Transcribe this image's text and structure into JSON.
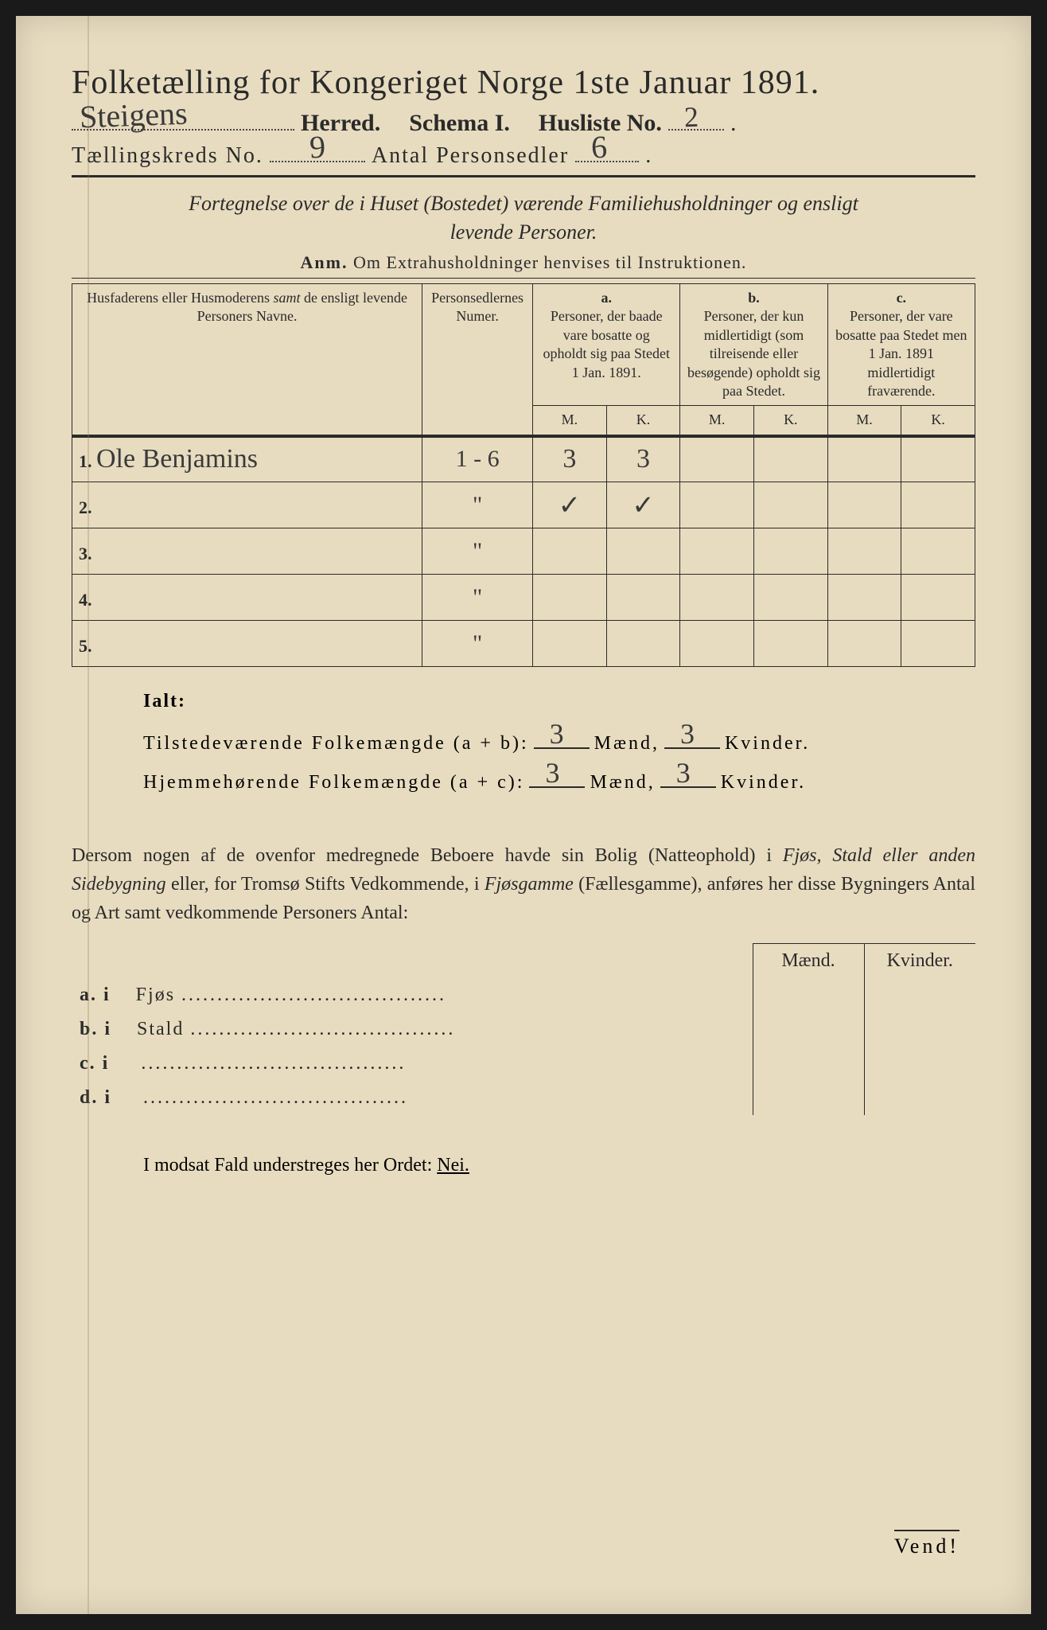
{
  "colors": {
    "paper": "#e8dcc0",
    "ink": "#2a2a2a",
    "outer": "#1a1a1a",
    "handwriting": "#3a3a3a"
  },
  "typography": {
    "title_fontsize": 42,
    "body_fontsize": 24,
    "table_header_fontsize": 18,
    "handwriting_fontsize": 40
  },
  "header": {
    "title": "Folketælling for Kongeriget Norge 1ste Januar 1891.",
    "herred_handwritten": "Steigens",
    "herred_label": "Herred.",
    "schema_label": "Schema I.",
    "husliste_label": "Husliste No.",
    "husliste_value": "2",
    "kreds_label": "Tællingskreds No.",
    "kreds_value": "9",
    "antal_label": "Antal Personsedler",
    "antal_value": "6"
  },
  "subtitle": {
    "line1": "Fortegnelse over de i Huset (Bostedet) værende Familiehusholdninger og ensligt",
    "line2": "levende Personer.",
    "anm": "Anm.  Om Extrahusholdninger henvises til Instruktionen."
  },
  "table": {
    "columns": {
      "col1": "Husfaderens eller Husmoderens samt de ensligt levende Personers Navne.",
      "col2": "Personsedlernes Numer.",
      "col_a_label": "a.",
      "col_a": "Personer, der baade vare bosatte og opholdt sig paa Stedet 1 Jan. 1891.",
      "col_b_label": "b.",
      "col_b": "Personer, der kun midlertidigt (som tilreisende eller besøgende) opholdt sig paa Stedet.",
      "col_c_label": "c.",
      "col_c": "Personer, der vare bosatte paa Stedet men 1 Jan. 1891 midlertidigt fraværende.",
      "m": "M.",
      "k": "K."
    },
    "rows": [
      {
        "num": "1.",
        "name": "Ole Benjamins",
        "sedler": "1 - 6",
        "a_m": "3",
        "a_k": "3",
        "b_m": "",
        "b_k": "",
        "c_m": "",
        "c_k": ""
      },
      {
        "num": "2.",
        "name": "",
        "sedler": "\"",
        "a_m": "✓",
        "a_k": "✓",
        "b_m": "",
        "b_k": "",
        "c_m": "",
        "c_k": ""
      },
      {
        "num": "3.",
        "name": "",
        "sedler": "\"",
        "a_m": "",
        "a_k": "",
        "b_m": "",
        "b_k": "",
        "c_m": "",
        "c_k": ""
      },
      {
        "num": "4.",
        "name": "",
        "sedler": "\"",
        "a_m": "",
        "a_k": "",
        "b_m": "",
        "b_k": "",
        "c_m": "",
        "c_k": ""
      },
      {
        "num": "5.",
        "name": "",
        "sedler": "\"",
        "a_m": "",
        "a_k": "",
        "b_m": "",
        "b_k": "",
        "c_m": "",
        "c_k": ""
      }
    ]
  },
  "totals": {
    "ialt_label": "Ialt:",
    "line1_label": "Tilstedeværende Folkemængde (a + b):",
    "line1_m": "3",
    "line1_k": "3",
    "line2_label": "Hjemmehørende Folkemængde (a + c):",
    "line2_m": "3",
    "line2_k": "3",
    "maend": "Mænd,",
    "kvinder": "Kvinder."
  },
  "paragraph": {
    "text_pre": "Dersom nogen af de ovenfor medregnede Beboere havde sin Bolig (Natteophold) i ",
    "ital1": "Fjøs, Stald eller anden Sidebygning",
    "text_mid": " eller, for Tromsø Stifts Vedkommende, i ",
    "ital2": "Fjøsgamme",
    "text_post": " (Fællesgamme), anføres her disse Bygningers Antal og Art samt vedkommende Personers Antal:"
  },
  "side_table": {
    "maend": "Mænd.",
    "kvinder": "Kvinder.",
    "rows": [
      {
        "label": "a.  i",
        "name": "Fjøs"
      },
      {
        "label": "b.  i",
        "name": "Stald"
      },
      {
        "label": "c.  i",
        "name": ""
      },
      {
        "label": "d.  i",
        "name": ""
      }
    ]
  },
  "nei_line": {
    "text": "I modsat Fald understreges her Ordet: ",
    "nei": "Nei."
  },
  "vend": "Vend!"
}
